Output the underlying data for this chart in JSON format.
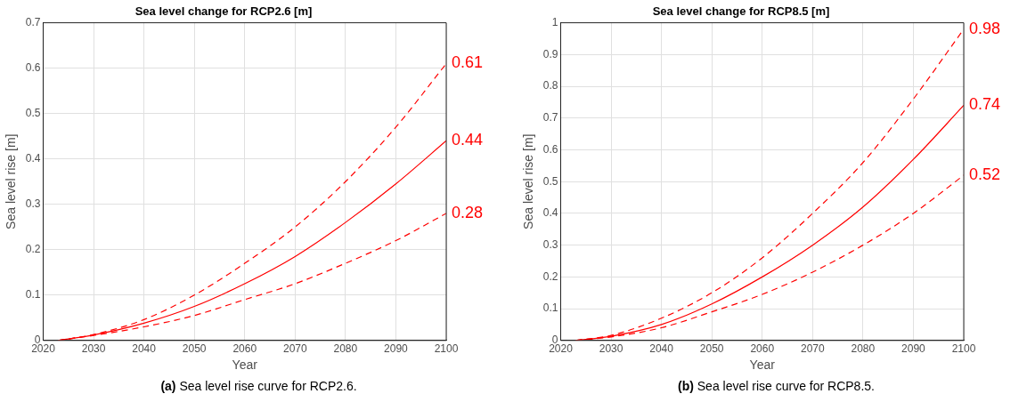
{
  "chart_data": [
    {
      "type": "line",
      "title": "Sea level change for RCP2.6 [m]",
      "xlabel": "Year",
      "ylabel": "Sea level rise [m]",
      "xlim": [
        2020,
        2100
      ],
      "xticks": [
        2020,
        2030,
        2040,
        2050,
        2060,
        2070,
        2080,
        2090,
        2100
      ],
      "ylim": [
        0,
        0.7
      ],
      "yticks": [
        0,
        0.1,
        0.2,
        0.3,
        0.4,
        0.5,
        0.6,
        0.7
      ],
      "grid": true,
      "legend": false,
      "marker": "none",
      "x": [
        2023,
        2030,
        2040,
        2050,
        2060,
        2070,
        2080,
        2090,
        2100
      ],
      "series": [
        {
          "color": "#ff0000",
          "line_style": "dashed",
          "values": [
            0,
            0.013,
            0.046,
            0.1,
            0.17,
            0.25,
            0.35,
            0.47,
            0.61
          ],
          "value_labels": [
            null,
            null,
            null,
            null,
            null,
            null,
            null,
            null,
            "0.61"
          ]
        },
        {
          "color": "#ff0000",
          "line_style": "solid",
          "values": [
            0,
            0.012,
            0.038,
            0.075,
            0.125,
            0.185,
            0.26,
            0.345,
            0.44
          ],
          "value_labels": [
            null,
            null,
            null,
            null,
            null,
            null,
            null,
            null,
            "0.44"
          ]
        },
        {
          "color": "#ff0000",
          "line_style": "dashed",
          "values": [
            0,
            0.011,
            0.03,
            0.055,
            0.09,
            0.125,
            0.17,
            0.22,
            0.28
          ],
          "value_labels": [
            null,
            null,
            null,
            null,
            null,
            null,
            null,
            null,
            "0.28"
          ]
        }
      ],
      "annotations": [
        "(a) Sea level rise curve for RCP2.6."
      ]
    },
    {
      "type": "line",
      "title": "Sea level change for RCP8.5 [m]",
      "xlabel": "Year",
      "ylabel": "Sea level rise [m]",
      "xlim": [
        2020,
        2100
      ],
      "xticks": [
        2020,
        2030,
        2040,
        2050,
        2060,
        2070,
        2080,
        2090,
        2100
      ],
      "ylim": [
        0,
        1
      ],
      "yticks": [
        0,
        0.1,
        0.2,
        0.3,
        0.4,
        0.5,
        0.6,
        0.7,
        0.8,
        0.9,
        1
      ],
      "grid": true,
      "legend": false,
      "marker": "none",
      "x": [
        2023,
        2030,
        2040,
        2050,
        2060,
        2070,
        2080,
        2090,
        2100
      ],
      "series": [
        {
          "color": "#ff0000",
          "line_style": "dashed",
          "values": [
            0,
            0.016,
            0.07,
            0.15,
            0.26,
            0.4,
            0.56,
            0.76,
            0.98
          ],
          "value_labels": [
            null,
            null,
            null,
            null,
            null,
            null,
            null,
            null,
            "0.98"
          ]
        },
        {
          "color": "#ff0000",
          "line_style": "solid",
          "values": [
            0,
            0.013,
            0.05,
            0.115,
            0.2,
            0.3,
            0.42,
            0.57,
            0.74
          ],
          "value_labels": [
            null,
            null,
            null,
            null,
            null,
            null,
            null,
            null,
            "0.74"
          ]
        },
        {
          "color": "#ff0000",
          "line_style": "dashed",
          "values": [
            0,
            0.011,
            0.04,
            0.09,
            0.145,
            0.215,
            0.3,
            0.4,
            0.52
          ],
          "value_labels": [
            null,
            null,
            null,
            null,
            null,
            null,
            null,
            null,
            "0.52"
          ]
        }
      ],
      "annotations": [
        "(b) Sea level rise curve for RCP8.5."
      ]
    }
  ]
}
